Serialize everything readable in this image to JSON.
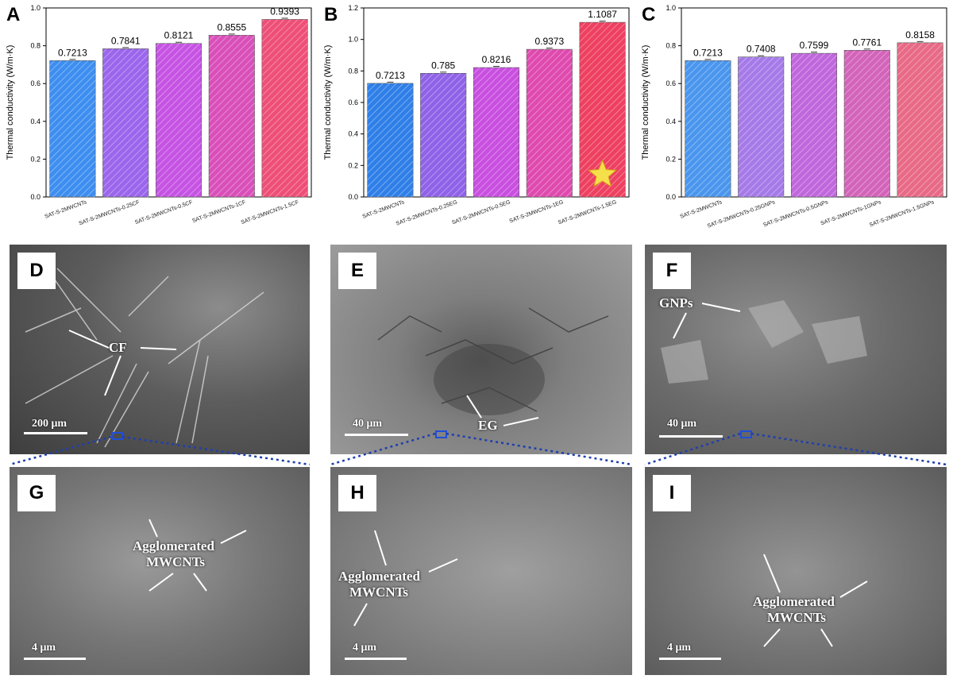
{
  "chart_data": [
    {
      "type": "bar",
      "letter": "A",
      "ylabel": "Thermal conductivity (W/m·K)",
      "ylim": [
        0,
        1.0
      ],
      "yticks": [
        "0.0",
        "0.2",
        "0.4",
        "0.6",
        "0.8",
        "1.0"
      ],
      "categories": [
        "SAT-S-2MWCNTs",
        "SAT-S-2MWCNTs-0.25CF",
        "SAT-S-2MWCNTs-0.5CF",
        "SAT-S-2MWCNTs-1CF",
        "SAT-S-2MWCNTs-1.5CF"
      ],
      "values": [
        0.7213,
        0.7841,
        0.8121,
        0.8555,
        0.9393
      ],
      "value_labels": [
        "0.7213",
        "0.7841",
        "0.8121",
        "0.8555",
        "0.9393"
      ],
      "bar_colors": [
        "#3d8ef0",
        "#9b65ec",
        "#c653e3",
        "#d94fb9",
        "#ee4f77"
      ]
    },
    {
      "type": "bar",
      "letter": "B",
      "ylabel": "Thermal conductivity (W/m·K)",
      "ylim": [
        0,
        1.2
      ],
      "yticks": [
        "0.0",
        "0.2",
        "0.4",
        "0.6",
        "0.8",
        "1.0",
        "1.2"
      ],
      "categories": [
        "SAT-S-2MWCNTs",
        "SAT-S-2MWCNTs-0.25EG",
        "SAT-S-2MWCNTs-0.5EG",
        "SAT-S-2MWCNTs-1EG",
        "SAT-S-2MWCNTs-1.5EG"
      ],
      "values": [
        0.7213,
        0.785,
        0.8216,
        0.9373,
        1.1087
      ],
      "value_labels": [
        "0.7213",
        "0.785",
        "0.8216",
        "0.9373",
        "1.1087"
      ],
      "bar_colors": [
        "#2f7fe8",
        "#8f62e8",
        "#c94fe0",
        "#df4aae",
        "#ee4060"
      ],
      "star_bar": 4
    },
    {
      "type": "bar",
      "letter": "C",
      "ylabel": "Thermal conductivity (W/m·K)",
      "ylim": [
        0,
        1.0
      ],
      "yticks": [
        "0.0",
        "0.2",
        "0.4",
        "0.6",
        "0.8",
        "1.0"
      ],
      "categories": [
        "SAT-S-2MWCNTs",
        "SAT-S-2MWCNTs-0.25GNPs",
        "SAT-S-2MWCNTs-0.5GNPs",
        "SAT-S-2MWCNTs-1GNPs",
        "SAT-S-2MWCNTs-1.5GNPs"
      ],
      "values": [
        0.7213,
        0.7408,
        0.7599,
        0.7761,
        0.8158
      ],
      "value_labels": [
        "0.7213",
        "0.7408",
        "0.7599",
        "0.7761",
        "0.8158"
      ],
      "bar_colors": [
        "#4a96ee",
        "#a57ae8",
        "#c067dd",
        "#d364b9",
        "#e86a86"
      ]
    }
  ],
  "micrographs": [
    {
      "letter": "D",
      "labels": [
        "CF"
      ],
      "scale": "200 μm"
    },
    {
      "letter": "E",
      "labels": [
        "EG"
      ],
      "scale": "40 μm"
    },
    {
      "letter": "F",
      "labels": [
        "GNPs"
      ],
      "scale": "40 μm"
    },
    {
      "letter": "G",
      "labels": [
        "Agglomerated",
        "MWCNTs"
      ],
      "scale": "4 μm"
    },
    {
      "letter": "H",
      "labels": [
        "Agglomerated",
        "MWCNTs"
      ],
      "scale": "4 μm"
    },
    {
      "letter": "I",
      "labels": [
        "Agglomerated",
        "MWCNTs"
      ],
      "scale": "4 μm"
    }
  ]
}
